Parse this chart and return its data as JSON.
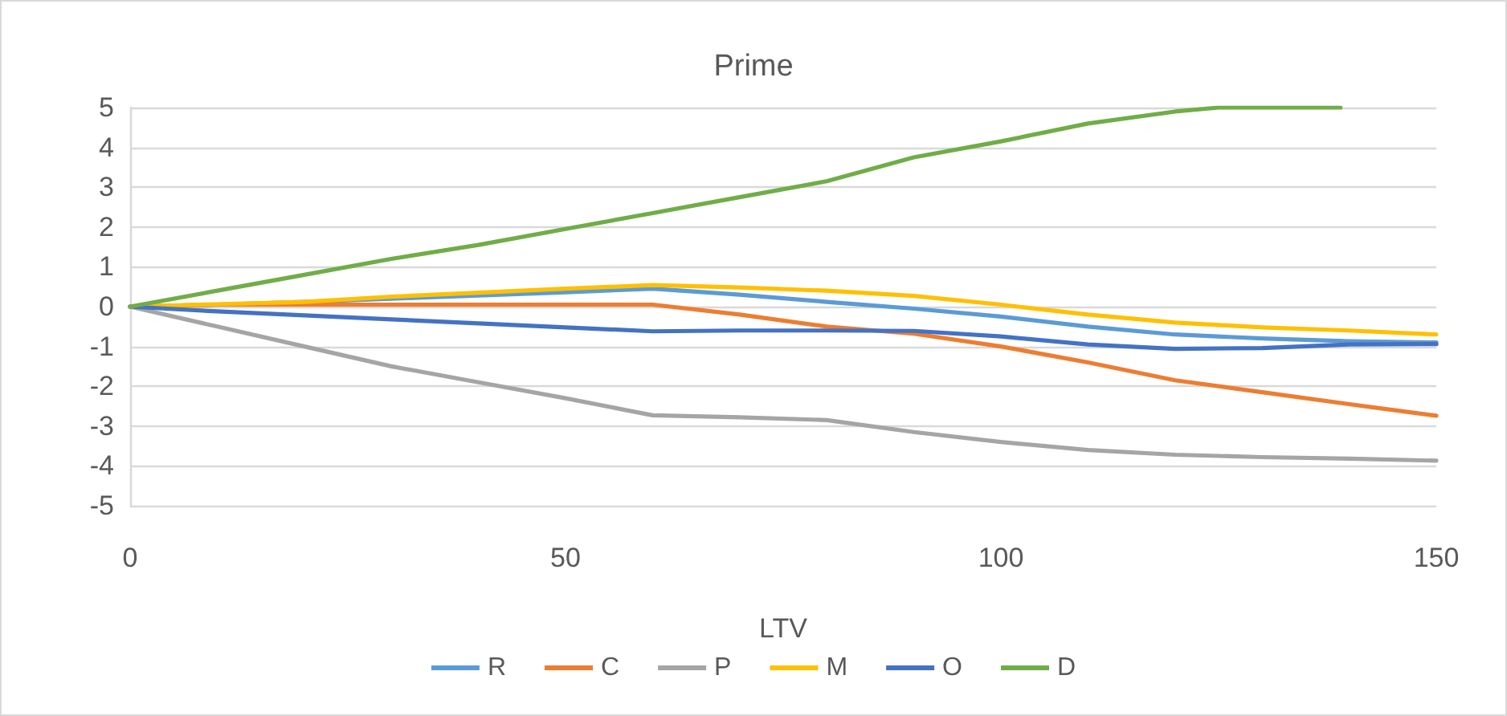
{
  "chart_data": {
    "type": "line",
    "title": "Prime",
    "xlabel": "LTV",
    "xlim": [
      0,
      150
    ],
    "xticks": [
      0,
      50,
      100,
      150
    ],
    "ylim": [
      -5,
      5
    ],
    "yticks": [
      -5,
      -4,
      -3,
      -2,
      -1,
      0,
      1,
      2,
      3,
      4,
      5
    ],
    "grid": "y",
    "legend": "bottom",
    "marker": "none",
    "line_style": "solid",
    "x": [
      0,
      10,
      20,
      30,
      40,
      50,
      60,
      70,
      80,
      90,
      100,
      110,
      120,
      130,
      140,
      150
    ],
    "series": [
      {
        "name": "R",
        "color": "#5b9bd5",
        "values": [
          0,
          0.05,
          0.12,
          0.2,
          0.28,
          0.36,
          0.45,
          0.3,
          0.12,
          -0.05,
          -0.25,
          -0.5,
          -0.7,
          -0.8,
          -0.87,
          -0.9
        ]
      },
      {
        "name": "C",
        "color": "#ed7d31",
        "values": [
          0,
          0.05,
          0.05,
          0.05,
          0.05,
          0.05,
          0.05,
          -0.2,
          -0.5,
          -0.68,
          -1.0,
          -1.4,
          -1.85,
          -2.15,
          -2.45,
          -2.74
        ]
      },
      {
        "name": "P",
        "color": "#a5a5a5",
        "values": [
          0,
          -0.5,
          -1.0,
          -1.5,
          -1.9,
          -2.3,
          -2.73,
          -2.78,
          -2.85,
          -3.15,
          -3.4,
          -3.6,
          -3.72,
          -3.78,
          -3.82,
          -3.87
        ]
      },
      {
        "name": "M",
        "color": "#ffc000",
        "values": [
          0,
          0.06,
          0.12,
          0.25,
          0.35,
          0.45,
          0.54,
          0.48,
          0.4,
          0.27,
          0.05,
          -0.2,
          -0.4,
          -0.52,
          -0.6,
          -0.7
        ]
      },
      {
        "name": "O",
        "color": "#4472c4",
        "values": [
          0,
          -0.12,
          -0.22,
          -0.32,
          -0.42,
          -0.52,
          -0.62,
          -0.6,
          -0.6,
          -0.61,
          -0.75,
          -0.95,
          -1.06,
          -1.04,
          -0.95,
          -0.94
        ]
      },
      {
        "name": "D",
        "color": "#70ad47",
        "x": [
          0,
          10,
          20,
          30,
          40,
          50,
          60,
          70,
          80,
          90,
          100,
          110,
          120,
          125,
          139
        ],
        "values": [
          0,
          0.4,
          0.8,
          1.2,
          1.55,
          1.95,
          2.35,
          2.75,
          3.15,
          3.75,
          4.15,
          4.6,
          4.9,
          5,
          5
        ]
      }
    ]
  }
}
